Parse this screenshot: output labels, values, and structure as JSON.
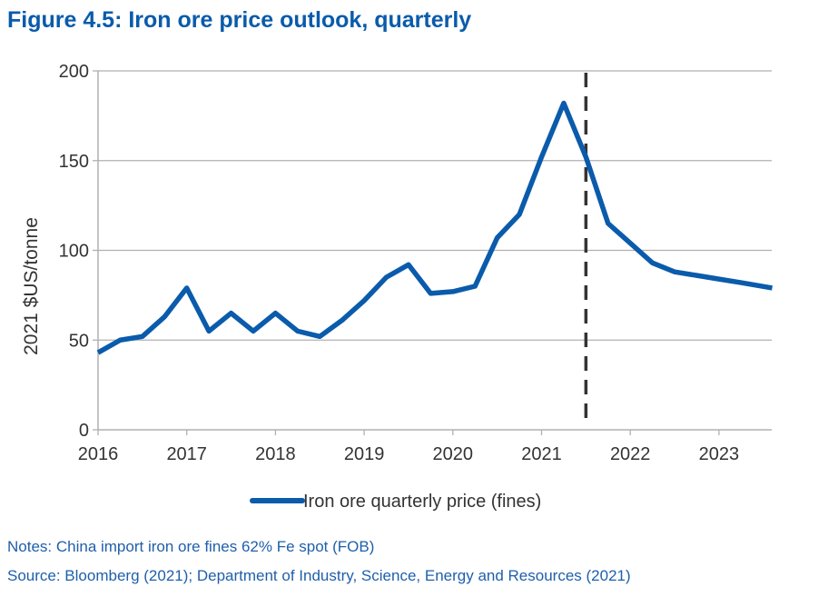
{
  "title": "Figure 4.5: Iron ore price outlook, quarterly",
  "notes": "Notes: China import iron ore fines 62% Fe spot (FOB)",
  "source": "Source: Bloomberg (2021); Department of Industry, Science, Energy and Resources (2021)",
  "colors": {
    "series": "#0a5bab",
    "grid": "#b0b0b0",
    "divider": "#333333",
    "text": "#333333"
  },
  "chart_data": {
    "type": "line",
    "title": "Figure 4.5: Iron ore price outlook, quarterly",
    "xlabel": "",
    "ylabel": "2021 $US/tonne",
    "ylim": [
      0,
      200
    ],
    "yticks": [
      0,
      50,
      100,
      150,
      200
    ],
    "xlim": [
      2016,
      2023.6
    ],
    "xticks": [
      "2016",
      "2017",
      "2018",
      "2019",
      "2020",
      "2021",
      "2022",
      "2023"
    ],
    "grid": true,
    "legend_position": "bottom",
    "forecast_divider_x": 2021.5,
    "series": [
      {
        "name": "Iron ore quarterly price (fines)",
        "x": [
          2016,
          2016.25,
          2016.5,
          2016.75,
          2017,
          2017.25,
          2017.5,
          2017.75,
          2018,
          2018.25,
          2018.5,
          2018.75,
          2019,
          2019.25,
          2019.5,
          2019.75,
          2020,
          2020.25,
          2020.5,
          2020.75,
          2021,
          2021.25,
          2021.5,
          2021.75,
          2022,
          2022.25,
          2022.5,
          2022.75,
          2023,
          2023.25,
          2023.6
        ],
        "values": [
          43,
          50,
          52,
          63,
          79,
          55,
          65,
          55,
          65,
          55,
          52,
          61,
          72,
          85,
          92,
          76,
          77,
          80,
          107,
          120,
          152,
          182,
          152,
          115,
          104,
          93,
          88,
          86,
          84,
          82,
          79
        ]
      }
    ]
  }
}
